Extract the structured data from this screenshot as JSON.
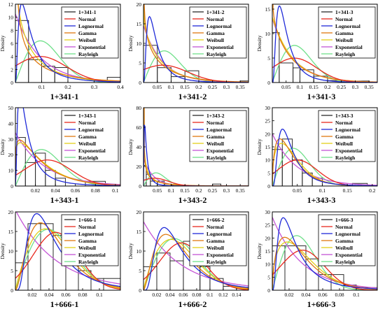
{
  "figure": {
    "density_label": "Density",
    "dist_colors": {
      "Normal": "#e8281e",
      "Lognormal": "#1f2ad8",
      "Gamma": "#e07a10",
      "Weibull": "#e3cf1a",
      "Exponential": "#c455d6",
      "Rayleigh": "#6fe08a"
    },
    "hist_color": "#2b2b2b"
  },
  "chart_data": [
    {
      "type": "bar",
      "title": "1+341-1",
      "ylabel": "Density",
      "xlim": [
        0,
        0.4
      ],
      "ylim": [
        0,
        12
      ],
      "xticks": [
        0.1,
        0.2,
        0.3,
        0.4
      ],
      "yticks": [
        0,
        2,
        4,
        6,
        8,
        10,
        12
      ],
      "legend": [
        "1+341-1",
        "Normal",
        "Lognormal",
        "Gamma",
        "Weibull",
        "Exponential",
        "Rayleigh"
      ],
      "legend_position": "top-right",
      "bins": [
        [
          0,
          0.05,
          9.5
        ],
        [
          0.05,
          0.1,
          3.5
        ],
        [
          0.1,
          0.15,
          2.5
        ],
        [
          0.15,
          0.2,
          2.3
        ],
        [
          0.2,
          0.25,
          0
        ],
        [
          0.25,
          0.3,
          0
        ],
        [
          0.3,
          0.35,
          0
        ],
        [
          0.35,
          0.4,
          0.8
        ]
      ],
      "curves": {
        "Normal": {
          "kind": "normal",
          "mu": 0.095,
          "s": 0.1,
          "scale": 1
        },
        "Lognormal": {
          "kind": "lognormal",
          "m": -2.9,
          "s": 0.9,
          "scale": 1
        },
        "Gamma": {
          "kind": "gamma",
          "k": 0.55,
          "theta": 0.17,
          "scale": 1
        },
        "Weibull": {
          "kind": "weibull",
          "k": 0.85,
          "lam": 0.08,
          "scale": 1
        },
        "Exponential": {
          "kind": "exponential",
          "lam": 10.5,
          "scale": 1
        },
        "Rayleigh": {
          "kind": "rayleigh",
          "sigma": 0.095,
          "scale": 1
        }
      }
    },
    {
      "type": "bar",
      "title": "1+341-2",
      "ylabel": "Density",
      "xlim": [
        0,
        0.38
      ],
      "ylim": [
        0,
        20
      ],
      "xticks": [
        0.05,
        0.1,
        0.15,
        0.2,
        0.25,
        0.3,
        0.35
      ],
      "yticks": [
        0,
        5,
        10,
        15,
        20
      ],
      "legend": [
        "1+341-2",
        "Normal",
        "Lognormal",
        "Gamma",
        "Weibull",
        "Exponential",
        "Rayleigh"
      ],
      "legend_position": "top-right",
      "bins": [
        [
          0,
          0.05,
          9.5
        ],
        [
          0.05,
          0.1,
          3.8
        ],
        [
          0.1,
          0.15,
          1.5
        ],
        [
          0.15,
          0.2,
          3.0
        ],
        [
          0.2,
          0.25,
          0
        ],
        [
          0.25,
          0.3,
          0
        ],
        [
          0.3,
          0.35,
          0
        ],
        [
          0.35,
          0.38,
          0.4
        ]
      ],
      "curves": {
        "Normal": {
          "kind": "normal",
          "mu": 0.07,
          "s": 0.09,
          "scale": 1
        },
        "Lognormal": {
          "kind": "lognormal",
          "m": -3.2,
          "s": 0.8,
          "scale": 1
        },
        "Gamma": {
          "kind": "gamma",
          "k": 0.75,
          "theta": 0.1,
          "scale": 1
        },
        "Weibull": {
          "kind": "weibull",
          "k": 0.95,
          "lam": 0.07,
          "scale": 1
        },
        "Exponential": {
          "kind": "exponential",
          "lam": 14.5,
          "scale": 1
        },
        "Rayleigh": {
          "kind": "rayleigh",
          "sigma": 0.075,
          "scale": 1
        }
      }
    },
    {
      "type": "bar",
      "title": "1+341-3",
      "ylabel": "Density",
      "xlim": [
        0,
        0.38
      ],
      "ylim": [
        0,
        16
      ],
      "xticks": [
        0.05,
        0.1,
        0.15,
        0.2,
        0.25,
        0.3,
        0.35
      ],
      "yticks": [
        0,
        5,
        10,
        15
      ],
      "legend": [
        "1+341-3",
        "Normal",
        "Lognormal",
        "Gamma",
        "Weibull",
        "Exponential",
        "Rayleigh"
      ],
      "legend_position": "top-right",
      "bins": [
        [
          0,
          0.025,
          10.2
        ],
        [
          0.025,
          0.075,
          4.0
        ],
        [
          0.075,
          0.1,
          3.0
        ],
        [
          0.1,
          0.15,
          2.6
        ],
        [
          0.15,
          0.2,
          1.3
        ],
        [
          0.2,
          0.25,
          0.4
        ],
        [
          0.25,
          0.3,
          0
        ],
        [
          0.3,
          0.35,
          0.3
        ]
      ],
      "curves": {
        "Normal": {
          "kind": "normal",
          "mu": 0.08,
          "s": 0.08,
          "scale": 1
        },
        "Lognormal": {
          "kind": "lognormal",
          "m": -3.1,
          "s": 0.75,
          "scale": 1
        },
        "Gamma": {
          "kind": "gamma",
          "k": 0.9,
          "theta": 0.085,
          "scale": 1
        },
        "Weibull": {
          "kind": "weibull",
          "k": 1.0,
          "lam": 0.075,
          "scale": 1
        },
        "Exponential": {
          "kind": "exponential",
          "lam": 13.0,
          "scale": 1
        },
        "Rayleigh": {
          "kind": "rayleigh",
          "sigma": 0.08,
          "scale": 1
        }
      }
    },
    {
      "type": "bar",
      "title": "1+343-1",
      "ylabel": "Density",
      "xlim": [
        0,
        0.105
      ],
      "ylim": [
        0,
        50
      ],
      "xticks": [
        0.02,
        0.04,
        0.06,
        0.08,
        0.1
      ],
      "yticks": [
        0,
        10,
        20,
        30,
        40,
        50
      ],
      "legend": [
        "1+343-1",
        "Normal",
        "Lognormal",
        "Gamma",
        "Weibull",
        "Exponential",
        "Rayleigh"
      ],
      "legend_position": "top-right",
      "bins": [
        [
          0,
          0.01,
          31
        ],
        [
          0.01,
          0.02,
          15
        ],
        [
          0.02,
          0.03,
          21
        ],
        [
          0.03,
          0.04,
          10
        ],
        [
          0.04,
          0.05,
          5
        ],
        [
          0.05,
          0.07,
          0
        ],
        [
          0.07,
          0.09,
          3
        ],
        [
          0.09,
          0.105,
          0
        ]
      ],
      "curves": {
        "Normal": {
          "kind": "normal",
          "mu": 0.032,
          "s": 0.024,
          "scale": 1
        },
        "Lognormal": {
          "kind": "lognormal",
          "m": -4.5,
          "s": 0.95,
          "scale": 1
        },
        "Gamma": {
          "kind": "gamma",
          "k": 1.2,
          "theta": 0.022,
          "scale": 1
        },
        "Weibull": {
          "kind": "weibull",
          "k": 1.15,
          "lam": 0.028,
          "scale": 1
        },
        "Exponential": {
          "kind": "exponential",
          "lam": 34,
          "scale": 1
        },
        "Rayleigh": {
          "kind": "rayleigh",
          "sigma": 0.026,
          "scale": 1
        }
      }
    },
    {
      "type": "bar",
      "title": "1+343-2",
      "ylabel": "Density",
      "xlim": [
        0,
        0.38
      ],
      "ylim": [
        0,
        80
      ],
      "xticks": [
        0.05,
        0.1,
        0.15,
        0.2,
        0.25,
        0.3,
        0.35
      ],
      "yticks": [
        0,
        20,
        40,
        60,
        80
      ],
      "legend": [
        "1+343-2",
        "Normal",
        "Lognormal",
        "Gamma",
        "Weibull",
        "Exponential",
        "Rayleigh"
      ],
      "legend_position": "top-right",
      "bins": [
        [
          0,
          0.01,
          21
        ],
        [
          0.01,
          0.025,
          12
        ],
        [
          0.025,
          0.05,
          5
        ],
        [
          0.05,
          0.075,
          5
        ],
        [
          0.075,
          0.1,
          2
        ],
        [
          0.1,
          0.15,
          1
        ],
        [
          0.15,
          0.25,
          0
        ],
        [
          0.25,
          0.28,
          2
        ],
        [
          0.28,
          0.38,
          0
        ]
      ],
      "curves": {
        "Normal": {
          "kind": "normal",
          "mu": 0.04,
          "s": 0.05,
          "scale": 1
        },
        "Lognormal": {
          "kind": "lognormal",
          "m": -4.6,
          "s": 1.0,
          "scale": 1
        },
        "Gamma": {
          "kind": "gamma",
          "k": 0.45,
          "theta": 0.09,
          "scale": 1
        },
        "Weibull": {
          "kind": "weibull",
          "k": 0.7,
          "lam": 0.03,
          "scale": 1
        },
        "Exponential": {
          "kind": "exponential",
          "lam": 28,
          "scale": 1
        },
        "Rayleigh": {
          "kind": "rayleigh",
          "sigma": 0.045,
          "scale": 1
        }
      }
    },
    {
      "type": "bar",
      "title": "1+343-3",
      "ylabel": "Density",
      "xlim": [
        0,
        0.21
      ],
      "ylim": [
        0,
        30
      ],
      "xticks": [
        0.05,
        0.1,
        0.15,
        0.2
      ],
      "yticks": [
        0,
        5,
        10,
        15,
        20,
        25,
        30
      ],
      "legend": [
        "1+343-3",
        "Normal",
        "Lognormal",
        "Gamma",
        "Weibull",
        "Exponential",
        "Rayleigh"
      ],
      "legend_position": "top-right",
      "bins": [
        [
          0,
          0.02,
          14
        ],
        [
          0.02,
          0.04,
          18
        ],
        [
          0.04,
          0.06,
          10
        ],
        [
          0.06,
          0.08,
          5
        ],
        [
          0.08,
          0.1,
          3
        ],
        [
          0.1,
          0.16,
          0
        ],
        [
          0.16,
          0.19,
          1
        ],
        [
          0.19,
          0.21,
          0
        ]
      ],
      "curves": {
        "Normal": {
          "kind": "normal",
          "mu": 0.05,
          "s": 0.04,
          "scale": 1
        },
        "Lognormal": {
          "kind": "lognormal",
          "m": -3.4,
          "s": 0.7,
          "scale": 1
        },
        "Gamma": {
          "kind": "gamma",
          "k": 1.6,
          "theta": 0.025,
          "scale": 1
        },
        "Weibull": {
          "kind": "weibull",
          "k": 1.4,
          "lam": 0.045,
          "scale": 1
        },
        "Exponential": {
          "kind": "exponential",
          "lam": 20,
          "scale": 1
        },
        "Rayleigh": {
          "kind": "rayleigh",
          "sigma": 0.042,
          "scale": 1
        }
      }
    },
    {
      "type": "bar",
      "title": "1+666-1",
      "ylabel": "Density",
      "xlim": [
        0,
        0.125
      ],
      "ylim": [
        0,
        20
      ],
      "xticks": [
        0.02,
        0.04,
        0.06,
        0.08,
        0.1
      ],
      "yticks": [
        0,
        5,
        10,
        15,
        20
      ],
      "legend": [
        "1+666-1",
        "Normal",
        "Lognormal",
        "Gamma",
        "Weibull",
        "Exponential",
        "Rayleigh"
      ],
      "legend_position": "top-right",
      "bins": [
        [
          0,
          0.015,
          7
        ],
        [
          0.015,
          0.03,
          17
        ],
        [
          0.03,
          0.045,
          17
        ],
        [
          0.045,
          0.06,
          14
        ],
        [
          0.06,
          0.075,
          7
        ],
        [
          0.075,
          0.09,
          5
        ],
        [
          0.09,
          0.105,
          3
        ],
        [
          0.105,
          0.125,
          3
        ]
      ],
      "curves": {
        "Normal": {
          "kind": "normal",
          "mu": 0.048,
          "s": 0.027,
          "scale": 1
        },
        "Lognormal": {
          "kind": "lognormal",
          "m": -3.25,
          "s": 0.65,
          "scale": 1
        },
        "Gamma": {
          "kind": "gamma",
          "k": 2.8,
          "theta": 0.0165,
          "scale": 1
        },
        "Weibull": {
          "kind": "weibull",
          "k": 1.9,
          "lam": 0.053,
          "scale": 1
        },
        "Exponential": {
          "kind": "exponential",
          "lam": 20.5,
          "scale": 1
        },
        "Rayleigh": {
          "kind": "rayleigh",
          "sigma": 0.039,
          "scale": 1
        }
      }
    },
    {
      "type": "bar",
      "title": "1+666-2",
      "ylabel": "Density",
      "xlim": [
        0,
        0.158
      ],
      "ylim": [
        0,
        20
      ],
      "xticks": [
        0.02,
        0.04,
        0.06,
        0.08,
        0.1,
        0.12,
        0.14
      ],
      "yticks": [
        0,
        5,
        10,
        15,
        20
      ],
      "legend": [
        "1+666-2",
        "Normal",
        "Lognormal",
        "Gamma",
        "Weibull",
        "Exponential",
        "Rayleigh"
      ],
      "legend_position": "top-right",
      "bins": [
        [
          0,
          0.02,
          6
        ],
        [
          0.02,
          0.04,
          9.5
        ],
        [
          0.04,
          0.06,
          7.5
        ],
        [
          0.06,
          0.085,
          12.5
        ],
        [
          0.085,
          0.1,
          6
        ],
        [
          0.1,
          0.12,
          3
        ],
        [
          0.12,
          0.14,
          1
        ],
        [
          0.14,
          0.158,
          0.5
        ]
      ],
      "curves": {
        "Normal": {
          "kind": "normal",
          "mu": 0.057,
          "s": 0.033,
          "scale": 1
        },
        "Lognormal": {
          "kind": "lognormal",
          "m": -3.05,
          "s": 0.65,
          "scale": 1
        },
        "Gamma": {
          "kind": "gamma",
          "k": 2.6,
          "theta": 0.021,
          "scale": 1
        },
        "Weibull": {
          "kind": "weibull",
          "k": 1.85,
          "lam": 0.063,
          "scale": 1
        },
        "Exponential": {
          "kind": "exponential",
          "lam": 17.5,
          "scale": 1
        },
        "Rayleigh": {
          "kind": "rayleigh",
          "sigma": 0.046,
          "scale": 1
        }
      }
    },
    {
      "type": "bar",
      "title": "1+666-3",
      "ylabel": "Density",
      "xlim": [
        0,
        0.125
      ],
      "ylim": [
        0,
        30
      ],
      "xticks": [
        0.02,
        0.04,
        0.06,
        0.08,
        0.1
      ],
      "yticks": [
        0,
        5,
        10,
        15,
        20,
        25,
        30
      ],
      "legend": [
        "1+666-3",
        "Normal",
        "Lognormal",
        "Gamma",
        "Weibull",
        "Exponential",
        "Rayleigh"
      ],
      "legend_position": "top-right",
      "bins": [
        [
          0,
          0.015,
          17
        ],
        [
          0.015,
          0.04,
          17
        ],
        [
          0.04,
          0.055,
          12
        ],
        [
          0.055,
          0.07,
          6
        ],
        [
          0.07,
          0.085,
          6
        ],
        [
          0.085,
          0.1,
          2
        ],
        [
          0.1,
          0.125,
          1
        ]
      ],
      "curves": {
        "Normal": {
          "kind": "normal",
          "mu": 0.036,
          "s": 0.026,
          "scale": 1
        },
        "Lognormal": {
          "kind": "lognormal",
          "m": -3.7,
          "s": 0.8,
          "scale": 1
        },
        "Gamma": {
          "kind": "gamma",
          "k": 1.7,
          "theta": 0.021,
          "scale": 1
        },
        "Weibull": {
          "kind": "weibull",
          "k": 1.45,
          "lam": 0.04,
          "scale": 1
        },
        "Exponential": {
          "kind": "exponential",
          "lam": 28,
          "scale": 1
        },
        "Rayleigh": {
          "kind": "rayleigh",
          "sigma": 0.029,
          "scale": 1
        }
      }
    }
  ]
}
